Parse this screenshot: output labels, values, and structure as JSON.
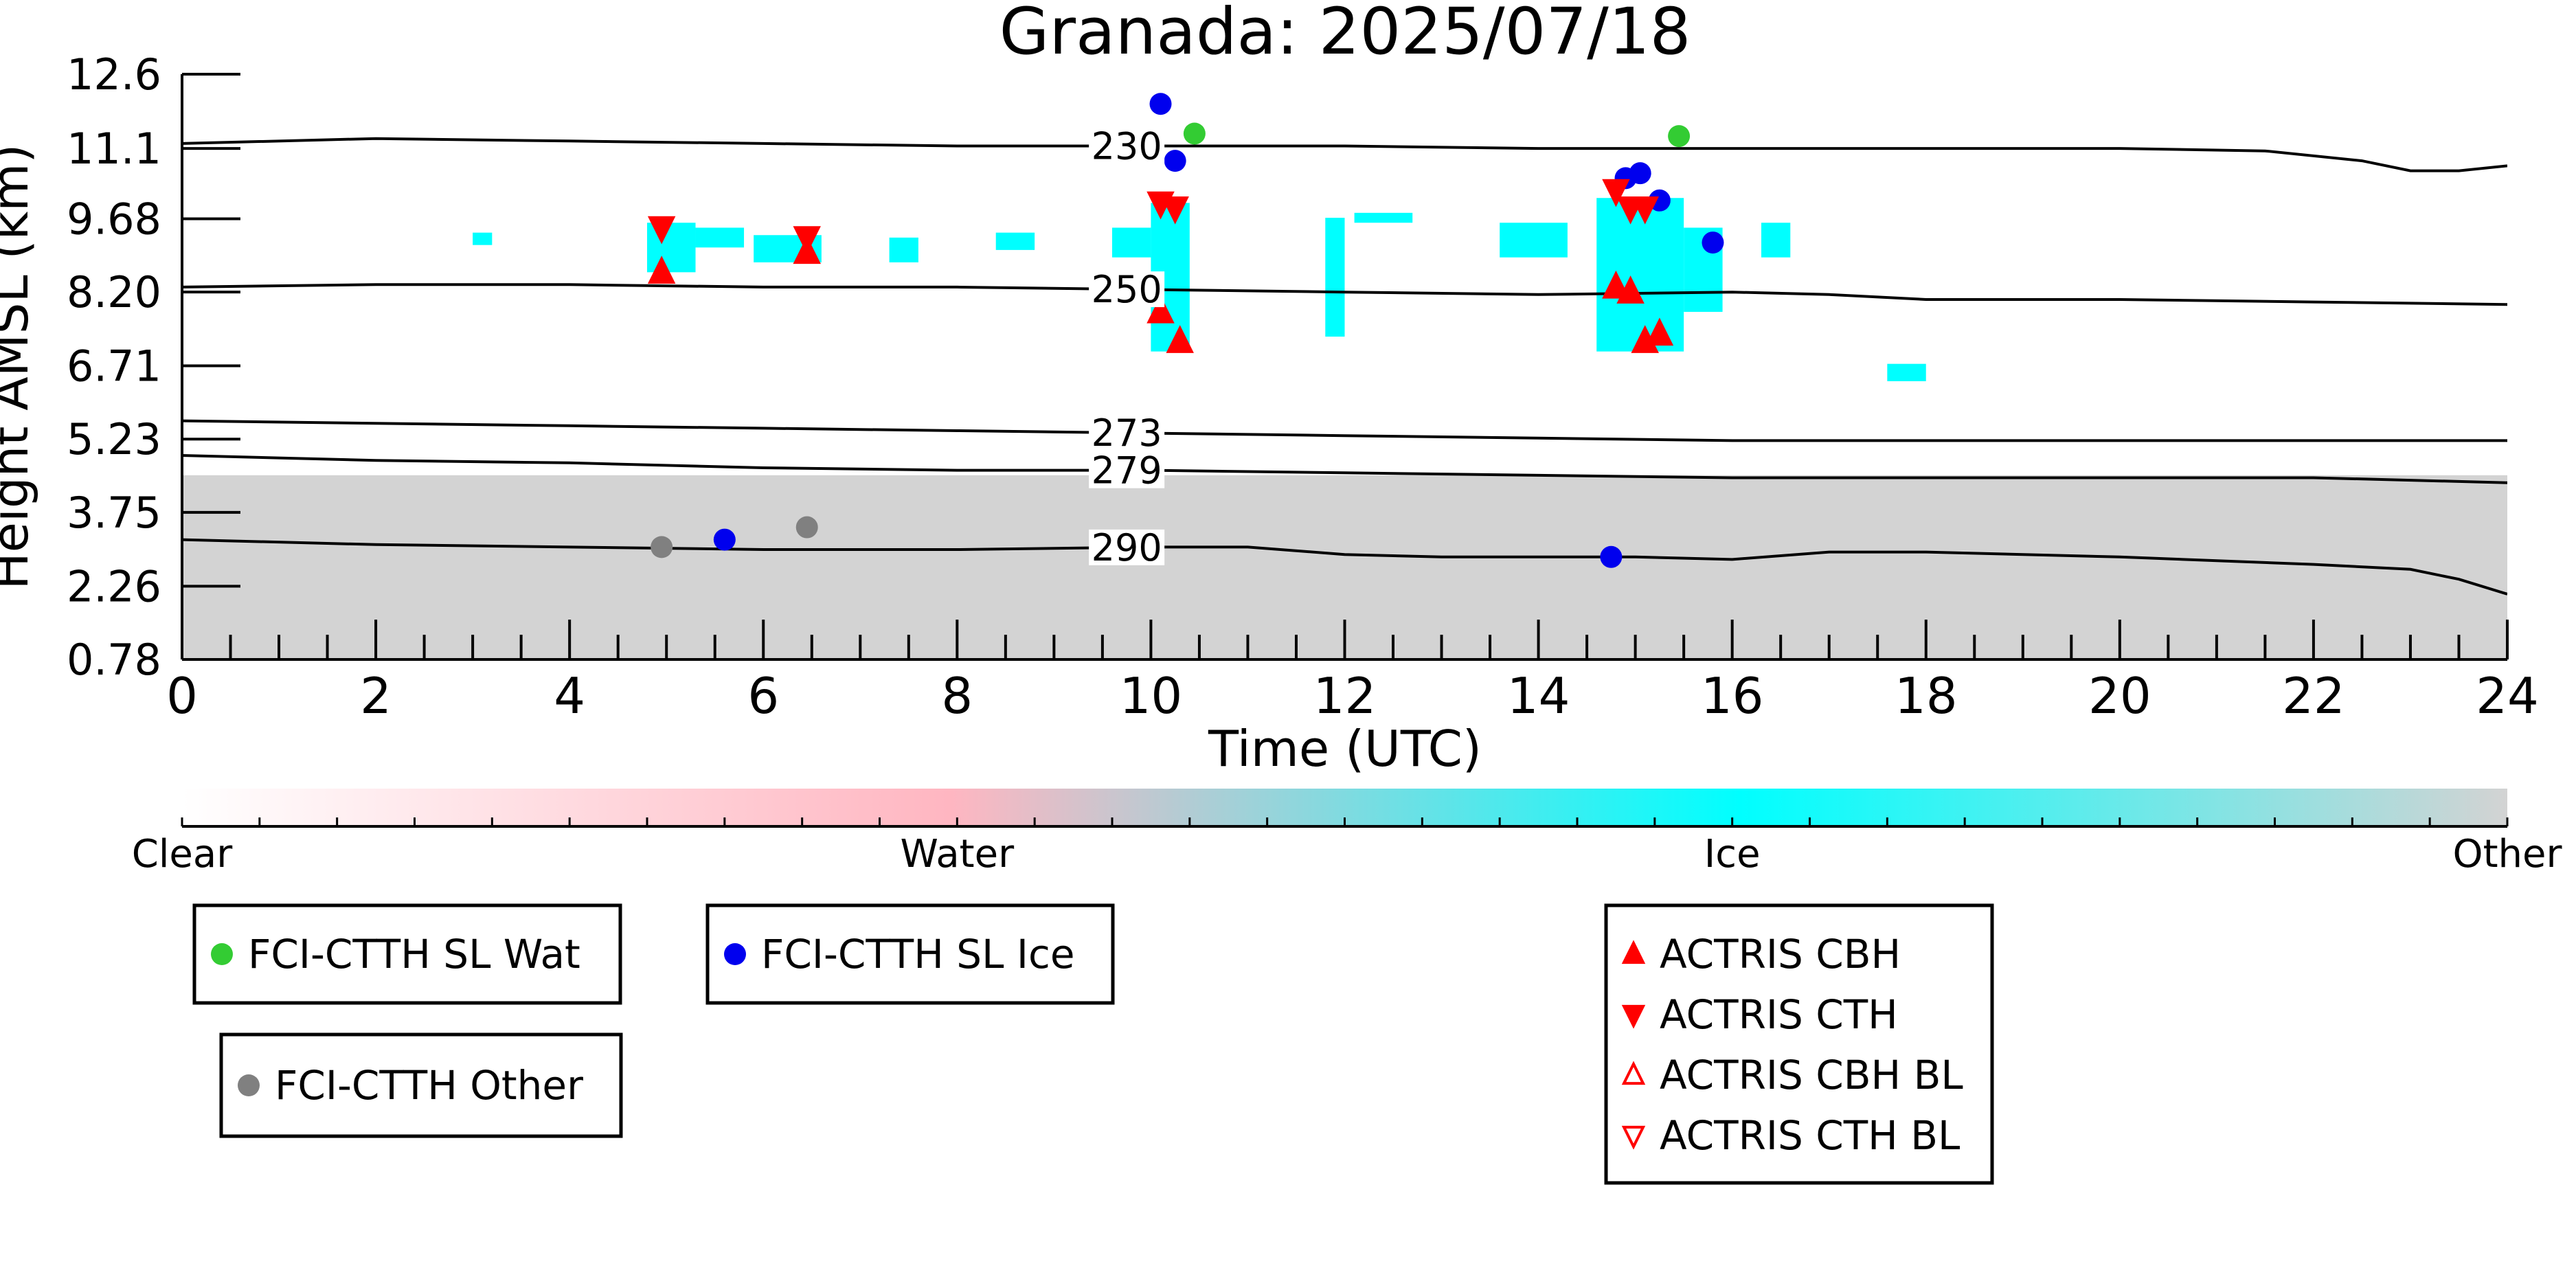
{
  "chart_data": {
    "type": "scatter",
    "title": "Granada: 2025/07/18",
    "xlabel": "Time (UTC)",
    "ylabel": "Height AMSL (km)",
    "xlim": [
      0,
      24
    ],
    "ylim": [
      0.78,
      12.6
    ],
    "x_ticks": [
      "0",
      "2",
      "4",
      "6",
      "8",
      "10",
      "12",
      "14",
      "16",
      "18",
      "20",
      "22",
      "24"
    ],
    "y_ticks": [
      "0.78",
      "2.26",
      "3.75",
      "5.23",
      "6.71",
      "8.20",
      "9.68",
      "11.1",
      "12.6"
    ],
    "grid": false,
    "contours": [
      {
        "label": "230",
        "points": [
          [
            0,
            11.2
          ],
          [
            2,
            11.3
          ],
          [
            4,
            11.25
          ],
          [
            6,
            11.2
          ],
          [
            8,
            11.15
          ],
          [
            10,
            11.15
          ],
          [
            12,
            11.15
          ],
          [
            14,
            11.1
          ],
          [
            16,
            11.1
          ],
          [
            18,
            11.1
          ],
          [
            20,
            11.1
          ],
          [
            21.5,
            11.05
          ],
          [
            22.5,
            10.85
          ],
          [
            23,
            10.65
          ],
          [
            23.5,
            10.65
          ],
          [
            24,
            10.75
          ]
        ]
      },
      {
        "label": "250",
        "points": [
          [
            0,
            8.3
          ],
          [
            2,
            8.35
          ],
          [
            4,
            8.35
          ],
          [
            6,
            8.3
          ],
          [
            8,
            8.3
          ],
          [
            10,
            8.25
          ],
          [
            12,
            8.2
          ],
          [
            14,
            8.15
          ],
          [
            16,
            8.2
          ],
          [
            17,
            8.15
          ],
          [
            18,
            8.05
          ],
          [
            20,
            8.05
          ],
          [
            22,
            8.0
          ],
          [
            24,
            7.95
          ]
        ]
      },
      {
        "label": "273",
        "points": [
          [
            0,
            5.6
          ],
          [
            2,
            5.55
          ],
          [
            4,
            5.5
          ],
          [
            6,
            5.45
          ],
          [
            8,
            5.4
          ],
          [
            10,
            5.35
          ],
          [
            12,
            5.3
          ],
          [
            14,
            5.25
          ],
          [
            16,
            5.2
          ],
          [
            18,
            5.2
          ],
          [
            20,
            5.2
          ],
          [
            22,
            5.2
          ],
          [
            24,
            5.2
          ]
        ]
      },
      {
        "label": "279",
        "points": [
          [
            0,
            4.9
          ],
          [
            2,
            4.8
          ],
          [
            4,
            4.75
          ],
          [
            6,
            4.65
          ],
          [
            8,
            4.6
          ],
          [
            10,
            4.6
          ],
          [
            12,
            4.55
          ],
          [
            14,
            4.5
          ],
          [
            16,
            4.45
          ],
          [
            18,
            4.45
          ],
          [
            20,
            4.45
          ],
          [
            22,
            4.45
          ],
          [
            24,
            4.35
          ]
        ]
      },
      {
        "label": "290",
        "points": [
          [
            0,
            3.2
          ],
          [
            2,
            3.1
          ],
          [
            4,
            3.05
          ],
          [
            6,
            3.0
          ],
          [
            8,
            3.0
          ],
          [
            10,
            3.05
          ],
          [
            11,
            3.05
          ],
          [
            12,
            2.9
          ],
          [
            13,
            2.85
          ],
          [
            14,
            2.85
          ],
          [
            15,
            2.85
          ],
          [
            16,
            2.8
          ],
          [
            17,
            2.95
          ],
          [
            18,
            2.95
          ],
          [
            20,
            2.85
          ],
          [
            22,
            2.7
          ],
          [
            23,
            2.6
          ],
          [
            23.5,
            2.4
          ],
          [
            24,
            2.1
          ]
        ]
      }
    ],
    "series": [
      {
        "name": "FCI-CTTH SL Wat",
        "marker": "circle",
        "color": "#33cc33",
        "x": [
          10.45,
          15.45
        ],
        "y": [
          11.4,
          11.35
        ]
      },
      {
        "name": "FCI-CTTH SL Ice",
        "marker": "circle",
        "color": "#0000ee",
        "x": [
          10.1,
          10.25,
          5.6,
          14.75,
          14.9,
          15.05,
          15.25,
          15.8
        ],
        "y": [
          12.0,
          10.85,
          3.2,
          2.85,
          10.5,
          10.6,
          10.05,
          9.2
        ]
      },
      {
        "name": "FCI-CTTH Other",
        "marker": "circle",
        "color": "#808080",
        "x": [
          4.95,
          6.45
        ],
        "y": [
          3.05,
          3.45
        ]
      },
      {
        "name": "ACTRIS CBH",
        "marker": "triangle-up",
        "color": "#ff0000",
        "filled": true,
        "x": [
          4.95,
          6.45,
          10.1,
          10.3,
          14.8,
          14.95,
          15.1,
          15.25
        ],
        "y": [
          8.6,
          9.0,
          7.8,
          7.2,
          8.3,
          8.2,
          7.2,
          7.35
        ]
      },
      {
        "name": "ACTRIS CTH",
        "marker": "triangle-down",
        "color": "#ff0000",
        "filled": true,
        "x": [
          4.95,
          6.45,
          10.1,
          10.25,
          14.8,
          14.95,
          15.1
        ],
        "y": [
          9.5,
          9.3,
          10.0,
          9.9,
          10.25,
          9.9,
          9.9
        ]
      },
      {
        "name": "ACTRIS CBH BL",
        "marker": "triangle-up",
        "color": "#ff0000",
        "filled": false,
        "x": [],
        "y": []
      },
      {
        "name": "ACTRIS CTH BL",
        "marker": "triangle-down",
        "color": "#ff0000",
        "filled": false,
        "x": [],
        "y": []
      }
    ],
    "classification_patches": [
      {
        "class": "Ice",
        "x": [
          3.0,
          3.2
        ],
        "y": [
          9.15,
          9.4
        ]
      },
      {
        "class": "Ice",
        "x": [
          4.8,
          5.3
        ],
        "y": [
          8.6,
          9.6
        ]
      },
      {
        "class": "Ice",
        "x": [
          5.3,
          5.8
        ],
        "y": [
          9.1,
          9.5
        ]
      },
      {
        "class": "Ice",
        "x": [
          5.9,
          6.6
        ],
        "y": [
          8.8,
          9.35
        ]
      },
      {
        "class": "Ice",
        "x": [
          7.3,
          7.6
        ],
        "y": [
          8.8,
          9.3
        ]
      },
      {
        "class": "Ice",
        "x": [
          8.4,
          8.8
        ],
        "y": [
          9.05,
          9.4
        ]
      },
      {
        "class": "Ice",
        "x": [
          9.6,
          10.0
        ],
        "y": [
          8.9,
          9.5
        ]
      },
      {
        "class": "Ice",
        "x": [
          10.0,
          10.4
        ],
        "y": [
          7.0,
          10.0
        ]
      },
      {
        "class": "Ice",
        "x": [
          11.8,
          12.0
        ],
        "y": [
          7.3,
          9.7
        ]
      },
      {
        "class": "Ice",
        "x": [
          12.1,
          12.7
        ],
        "y": [
          9.6,
          9.8
        ]
      },
      {
        "class": "Ice",
        "x": [
          13.6,
          14.3
        ],
        "y": [
          8.9,
          9.6
        ]
      },
      {
        "class": "Ice",
        "x": [
          14.6,
          15.5
        ],
        "y": [
          7.0,
          10.1
        ]
      },
      {
        "class": "Ice",
        "x": [
          15.5,
          15.9
        ],
        "y": [
          7.8,
          9.5
        ]
      },
      {
        "class": "Ice",
        "x": [
          16.3,
          16.6
        ],
        "y": [
          8.9,
          9.6
        ]
      },
      {
        "class": "Ice",
        "x": [
          17.6,
          18.0
        ],
        "y": [
          6.4,
          6.75
        ]
      },
      {
        "class": "Other",
        "x": [
          0.0,
          24.0
        ],
        "y": [
          0.78,
          4.5
        ]
      }
    ],
    "colorbar": {
      "labels": [
        "Clear",
        "Water",
        "Ice",
        "Other"
      ],
      "colors": [
        "#ffffff",
        "#ffb6c1",
        "#00ffff",
        "#d3d3d3"
      ]
    },
    "legend": {
      "placement": "below",
      "entries": [
        {
          "label": "FCI-CTTH SL Wat"
        },
        {
          "label": "FCI-CTTH SL Ice"
        },
        {
          "label": "FCI-CTTH Other"
        },
        {
          "label": "ACTRIS CBH"
        },
        {
          "label": "ACTRIS CTH"
        },
        {
          "label": "ACTRIS CBH BL"
        },
        {
          "label": "ACTRIS CTH BL"
        }
      ]
    }
  }
}
